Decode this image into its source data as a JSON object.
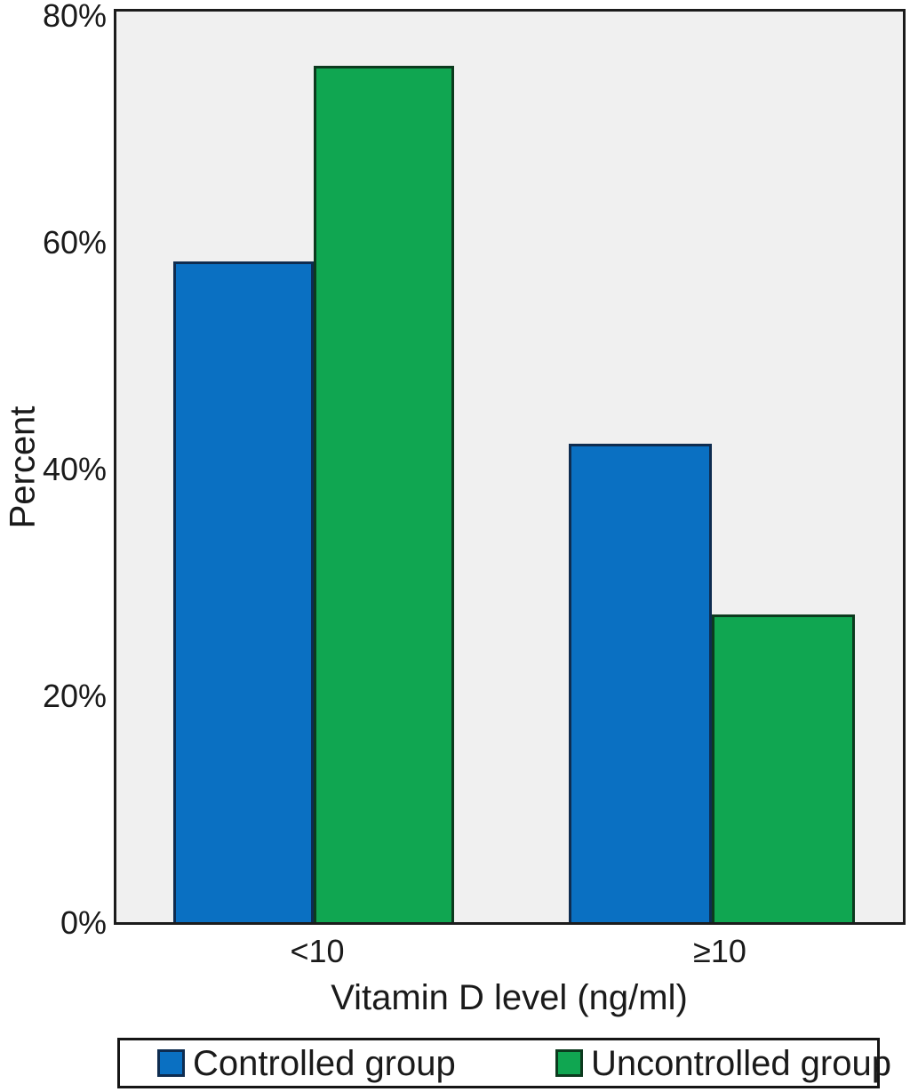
{
  "chart_data": {
    "type": "bar",
    "categories": [
      "<10",
      "≥10"
    ],
    "series": [
      {
        "name": "Controlled group",
        "color": "#0a70c2",
        "values": [
          58.3,
          42.2
        ]
      },
      {
        "name": "Uncontrolled group",
        "color": "#10a651",
        "values": [
          75.5,
          27.1
        ]
      }
    ],
    "xlabel": "Vitamin D level (ng/ml)",
    "ylabel": "Percent",
    "ylim": [
      0,
      80
    ],
    "ytick_labels": [
      "0%",
      "20%",
      "40%",
      "60%",
      "80%"
    ],
    "grid": false,
    "legend_position": "bottom",
    "plot_background": "#f0f0f0",
    "frame_color": "#1c1c1c"
  }
}
